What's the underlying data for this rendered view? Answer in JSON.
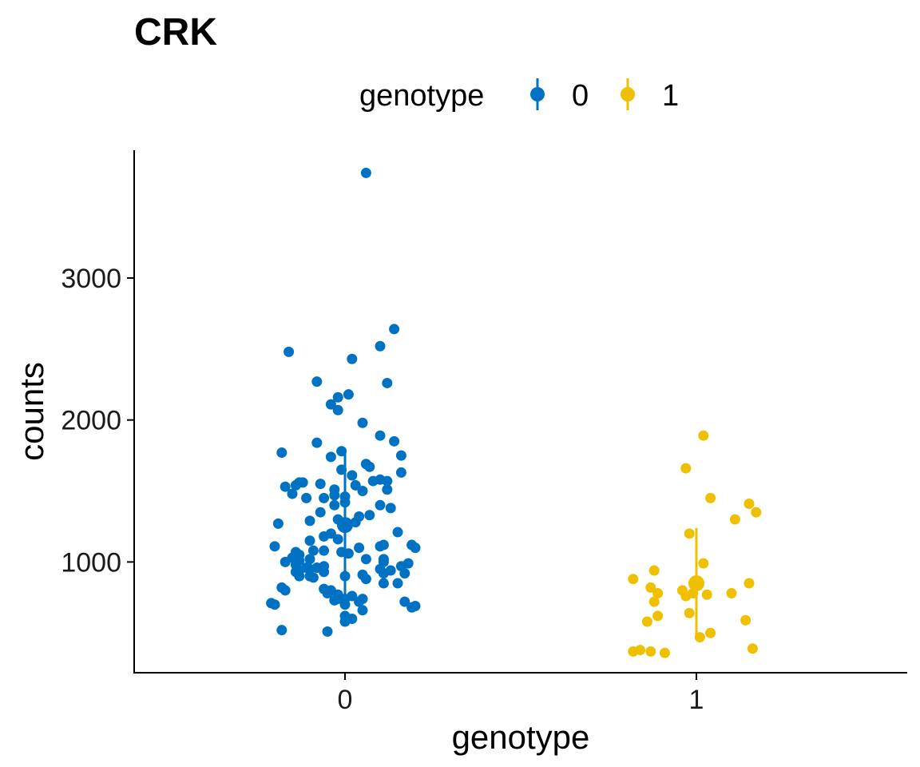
{
  "chart_data": {
    "type": "scatter",
    "title": "CRK",
    "xlabel": "genotype",
    "ylabel": "counts",
    "categories": [
      "0",
      "1"
    ],
    "ylim": [
      220,
      3900
    ],
    "y_ticks": [
      1000,
      2000,
      3000
    ],
    "y_tick_labels": [
      "1000",
      "2000",
      "3000"
    ],
    "grid": false,
    "legend": {
      "title": "genotype",
      "position": "top",
      "entries": [
        {
          "label": "0",
          "color": "#0072C3"
        },
        {
          "label": "1",
          "color": "#EFC000"
        }
      ]
    },
    "series": [
      {
        "name": "0",
        "category": "0",
        "color": "#0072C3",
        "mean": 1260,
        "sd_low": 750,
        "sd_high": 1770,
        "points": [
          [
            0.06,
            3740
          ],
          [
            0.14,
            2640
          ],
          [
            -0.16,
            2480
          ],
          [
            0.1,
            2520
          ],
          [
            0.02,
            2430
          ],
          [
            -0.08,
            2270
          ],
          [
            0.12,
            2260
          ],
          [
            -0.02,
            2160
          ],
          [
            0.01,
            2180
          ],
          [
            -0.04,
            2110
          ],
          [
            -0.02,
            2070
          ],
          [
            0.05,
            1980
          ],
          [
            0.1,
            1890
          ],
          [
            0.14,
            1850
          ],
          [
            -0.08,
            1840
          ],
          [
            -0.18,
            1770
          ],
          [
            -0.01,
            1780
          ],
          [
            0.16,
            1750
          ],
          [
            -0.04,
            1740
          ],
          [
            0.06,
            1690
          ],
          [
            -0.01,
            1650
          ],
          [
            0.07,
            1670
          ],
          [
            0.16,
            1630
          ],
          [
            0.02,
            1610
          ],
          [
            0.1,
            1580
          ],
          [
            -0.13,
            1560
          ],
          [
            -0.12,
            1560
          ],
          [
            -0.14,
            1540
          ],
          [
            -0.17,
            1530
          ],
          [
            -0.07,
            1550
          ],
          [
            0.03,
            1540
          ],
          [
            0.12,
            1570
          ],
          [
            0.08,
            1570
          ],
          [
            -0.03,
            1510
          ],
          [
            0.05,
            1500
          ],
          [
            0.12,
            1510
          ],
          [
            -0.15,
            1480
          ],
          [
            -0.03,
            1470
          ],
          [
            -0.06,
            1450
          ],
          [
            0.0,
            1460
          ],
          [
            -0.11,
            1450
          ],
          [
            0.0,
            1420
          ],
          [
            -0.03,
            1400
          ],
          [
            0.1,
            1400
          ],
          [
            0.13,
            1380
          ],
          [
            -0.07,
            1350
          ],
          [
            0.07,
            1330
          ],
          [
            0.04,
            1320
          ],
          [
            -0.02,
            1300
          ],
          [
            0.03,
            1280
          ],
          [
            -0.1,
            1290
          ],
          [
            -0.19,
            1270
          ],
          [
            0.0,
            1260
          ],
          [
            0.15,
            1210
          ],
          [
            -0.04,
            1200
          ],
          [
            -0.06,
            1180
          ],
          [
            -0.02,
            1160
          ],
          [
            -0.1,
            1150
          ],
          [
            0.11,
            1120
          ],
          [
            0.1,
            1110
          ],
          [
            -0.2,
            1110
          ],
          [
            0.04,
            1100
          ],
          [
            0.19,
            1120
          ],
          [
            0.2,
            1100
          ],
          [
            -0.14,
            1070
          ],
          [
            -0.01,
            1070
          ],
          [
            -0.06,
            1080
          ],
          [
            -0.09,
            1080
          ],
          [
            0.01,
            1060
          ],
          [
            0.06,
            1020
          ],
          [
            -0.13,
            1050
          ],
          [
            -0.15,
            1030
          ],
          [
            -0.17,
            1000
          ],
          [
            -0.1,
            1020
          ],
          [
            -0.13,
            1010
          ],
          [
            0.11,
            1020
          ],
          [
            0.18,
            990
          ],
          [
            0.11,
            1000
          ],
          [
            -0.14,
            980
          ],
          [
            -0.06,
            970
          ],
          [
            0.16,
            970
          ],
          [
            -0.08,
            960
          ],
          [
            -0.11,
            960
          ],
          [
            -0.1,
            950
          ],
          [
            0.13,
            940
          ],
          [
            -0.13,
            940
          ],
          [
            -0.14,
            930
          ],
          [
            0.1,
            950
          ],
          [
            -0.06,
            930
          ],
          [
            0.17,
            920
          ],
          [
            0.11,
            920
          ],
          [
            0.05,
            910
          ],
          [
            0.0,
            900
          ],
          [
            -0.13,
            900
          ],
          [
            -0.1,
            900
          ],
          [
            -0.09,
            890
          ],
          [
            0.06,
            880
          ],
          [
            0.11,
            850
          ],
          [
            0.15,
            850
          ],
          [
            -0.18,
            820
          ],
          [
            -0.06,
            810
          ],
          [
            -0.04,
            800
          ],
          [
            -0.17,
            800
          ],
          [
            -0.05,
            780
          ],
          [
            -0.02,
            770
          ],
          [
            0.02,
            760
          ],
          [
            0.05,
            740
          ],
          [
            0.0,
            740
          ],
          [
            -0.03,
            730
          ],
          [
            -0.02,
            740
          ],
          [
            0.04,
            720
          ],
          [
            -0.21,
            710
          ],
          [
            -0.2,
            700
          ],
          [
            0.17,
            720
          ],
          [
            0.0,
            700
          ],
          [
            0.19,
            680
          ],
          [
            0.2,
            690
          ],
          [
            0.05,
            660
          ],
          [
            0.0,
            620
          ],
          [
            0.02,
            600
          ],
          [
            0.0,
            580
          ],
          [
            -0.18,
            520
          ],
          [
            -0.05,
            510
          ]
        ]
      },
      {
        "name": "1",
        "category": "1",
        "color": "#EFC000",
        "mean": 850,
        "sd_low": 470,
        "sd_high": 1240,
        "points": [
          [
            1.02,
            1890
          ],
          [
            0.97,
            1660
          ],
          [
            1.04,
            1450
          ],
          [
            1.15,
            1410
          ],
          [
            1.17,
            1350
          ],
          [
            1.11,
            1300
          ],
          [
            0.98,
            1200
          ],
          [
            1.02,
            990
          ],
          [
            0.82,
            880
          ],
          [
            1.15,
            850
          ],
          [
            0.88,
            940
          ],
          [
            0.96,
            800
          ],
          [
            1.0,
            840
          ],
          [
            0.97,
            760
          ],
          [
            0.89,
            780
          ],
          [
            0.99,
            780
          ],
          [
            0.87,
            820
          ],
          [
            1.03,
            770
          ],
          [
            1.1,
            780
          ],
          [
            0.88,
            720
          ],
          [
            0.98,
            640
          ],
          [
            0.89,
            620
          ],
          [
            0.86,
            580
          ],
          [
            1.14,
            590
          ],
          [
            1.01,
            470
          ],
          [
            1.04,
            500
          ],
          [
            1.16,
            390
          ],
          [
            0.82,
            370
          ],
          [
            0.84,
            380
          ],
          [
            0.87,
            370
          ],
          [
            0.91,
            360
          ]
        ]
      }
    ]
  }
}
